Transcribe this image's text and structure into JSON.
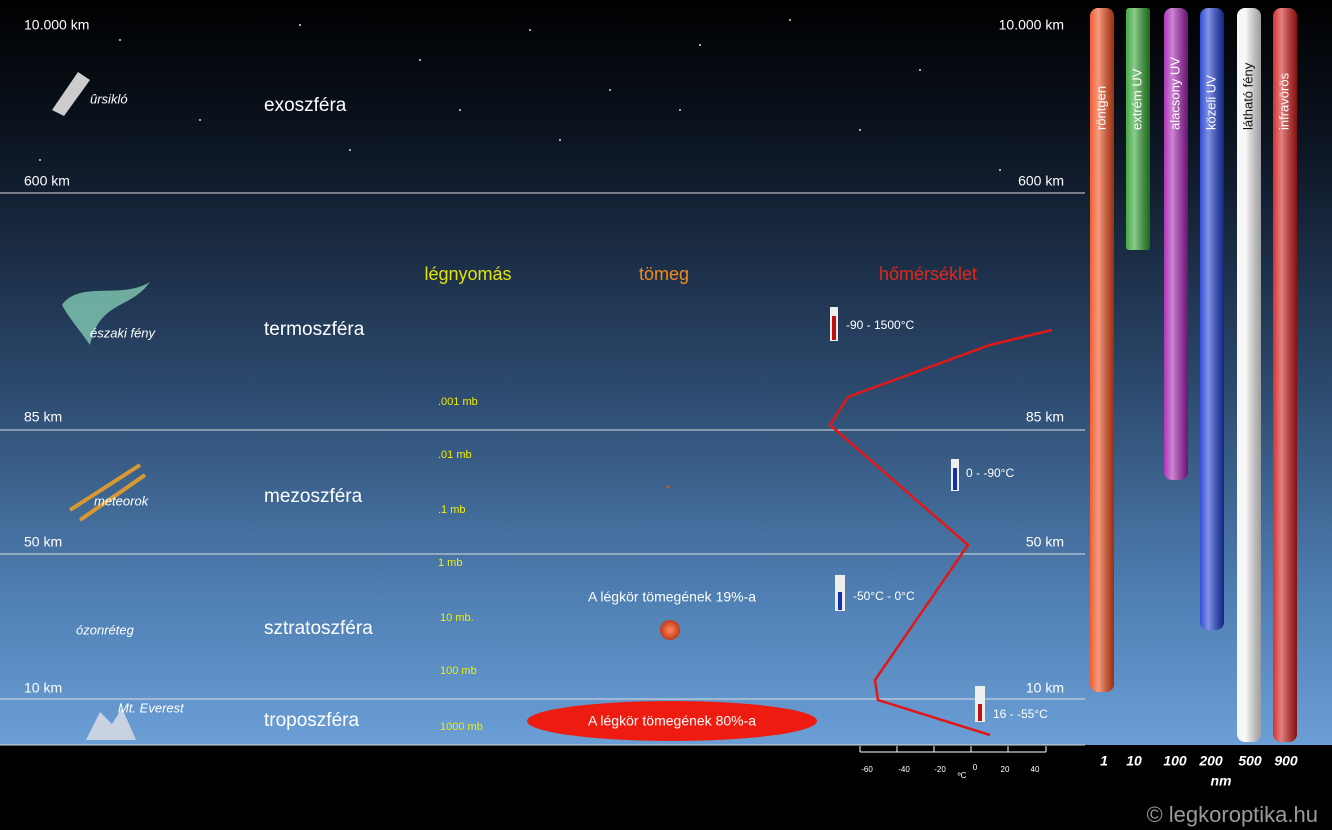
{
  "altitudes": [
    "10.000 km",
    "600 km",
    "85 km",
    "50 km",
    "10 km"
  ],
  "layers": [
    {
      "name": "exoszféra",
      "feature": "ûrsikló"
    },
    {
      "name": "termoszféra",
      "feature": "északi fény"
    },
    {
      "name": "mezoszféra",
      "feature": "meteorok"
    },
    {
      "name": "sztratoszféra",
      "feature": "ózonréteg"
    },
    {
      "name": "troposzféra",
      "feature": "Mt. Everest"
    }
  ],
  "columns": {
    "pressure": "légnyomás",
    "mass": "tömeg",
    "temperature": "hőmérséklet"
  },
  "pressures": [
    ".001 mb",
    ".01 mb",
    ".1 mb",
    "1 mb",
    "10 mb.",
    "100 mb",
    "1000 mb"
  ],
  "mass_labels": [
    "A légkör tömegének 19%-a",
    "A légkör tömegének 80%-a"
  ],
  "temperatures": [
    "-90 - 1500°C",
    "0 - -90°C",
    "-50°C - 0°C",
    "16 - -55°C"
  ],
  "temperature_scale": {
    "ticks": [
      -60,
      -40,
      -20,
      0,
      20,
      40
    ],
    "unit": "ºC"
  },
  "spectrum": [
    {
      "name": "röntgen",
      "wavelength": 1
    },
    {
      "name": "extrém UV",
      "wavelength": 10
    },
    {
      "name": "alacsony UV",
      "wavelength": 100
    },
    {
      "name": "közeli UV",
      "wavelength": 200
    },
    {
      "name": "látható fény",
      "wavelength": 500
    },
    {
      "name": "infravörös",
      "wavelength": 900
    }
  ],
  "wavelength_unit": "nm",
  "copyright": "© legkoroptika.hu"
}
